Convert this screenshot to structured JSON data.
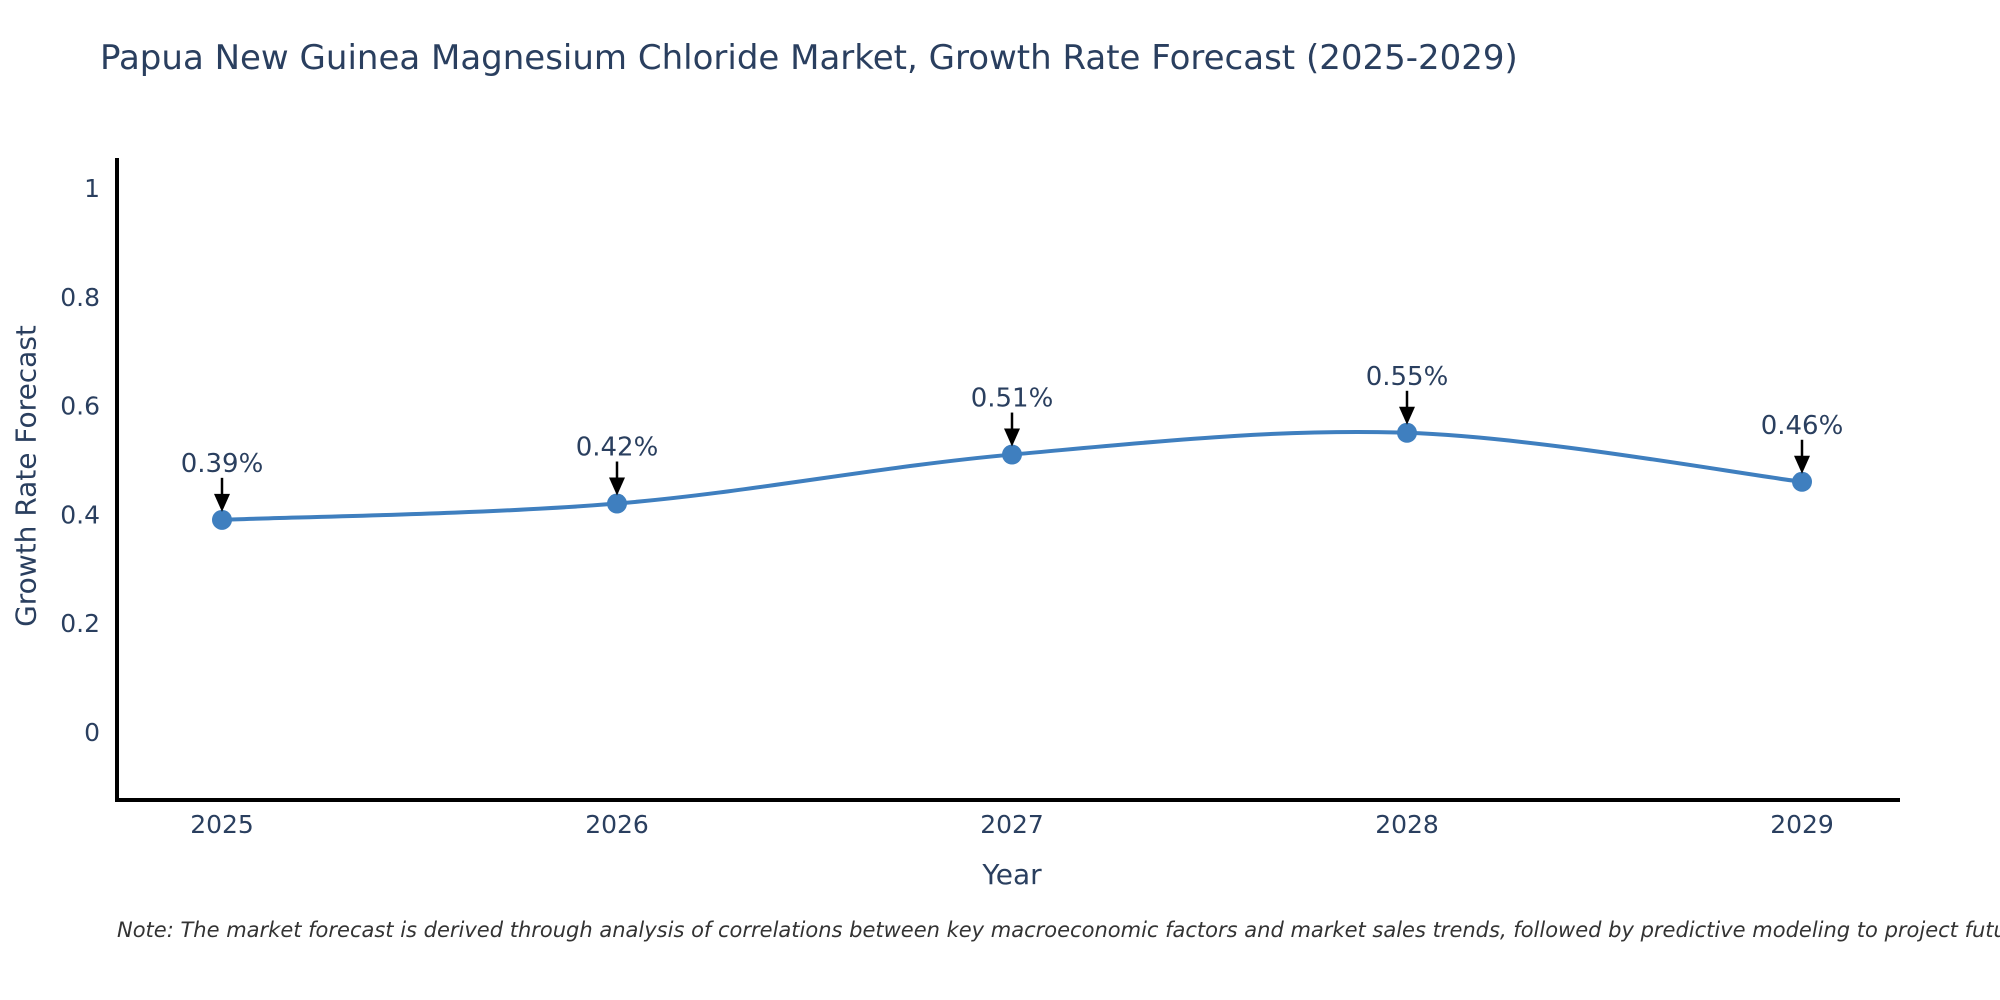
{
  "title": "Papua New Guinea Magnesium Chloride Market, Growth Rate Forecast (2025-2029)",
  "note": "Note: The market forecast is derived through analysis of correlations between key macroeconomic factors and market sales trends, followed by predictive modeling to project future sales",
  "chart_data": {
    "type": "line",
    "title": "Papua New Guinea Magnesium Chloride Market, Growth Rate Forecast (2025-2029)",
    "categories": [
      "2025",
      "2026",
      "2027",
      "2028",
      "2029"
    ],
    "series": [
      {
        "name": "Growth Rate Forecast",
        "values": [
          0.39,
          0.42,
          0.51,
          0.55,
          0.46
        ]
      }
    ],
    "point_labels": [
      "0.39%",
      "0.42%",
      "0.51%",
      "0.55%",
      "0.46%"
    ],
    "xlabel": "Year",
    "ylabel": "Growth Rate Forecast",
    "ylim": [
      -0.12,
      1.06
    ],
    "yticks": [
      0,
      0.2,
      0.4,
      0.6,
      0.8,
      1
    ],
    "grid": false,
    "legend": "none",
    "line_smooth": true,
    "colors": {
      "line": "#3f7fbf",
      "marker": "#3f7fbf",
      "arrow": "#000000",
      "axis": "#000000",
      "text": "#2a3f5f",
      "note_text": "#333333",
      "background": "#ffffff"
    }
  }
}
